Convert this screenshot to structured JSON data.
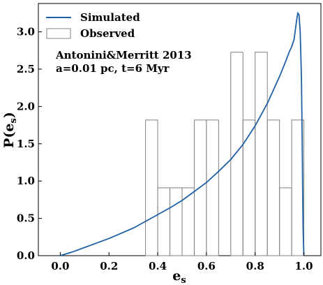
{
  "chart_data": {
    "type": "bar",
    "xlabel": "e",
    "xlabel_sub": "s",
    "ylabel_prefix": "P(e",
    "ylabel_sub": "s",
    "ylabel_suffix": ")",
    "xlim": [
      -0.09,
      1.07
    ],
    "ylim": [
      0.0,
      3.38
    ],
    "x_ticks": [
      {
        "value": 0.0,
        "label": "0.0"
      },
      {
        "value": 0.2,
        "label": "0.2"
      },
      {
        "value": 0.4,
        "label": "0.4"
      },
      {
        "value": 0.6,
        "label": "0.6"
      },
      {
        "value": 0.8,
        "label": "0.8"
      },
      {
        "value": 1.0,
        "label": "1.0"
      }
    ],
    "y_ticks": [
      {
        "value": 0.0,
        "label": "0.0"
      },
      {
        "value": 0.5,
        "label": "0.5"
      },
      {
        "value": 1.0,
        "label": "1.0"
      },
      {
        "value": 1.5,
        "label": "1.5"
      },
      {
        "value": 2.0,
        "label": "2.0"
      },
      {
        "value": 2.5,
        "label": "2.5"
      },
      {
        "value": 3.0,
        "label": "3.0"
      }
    ],
    "legend": {
      "placement": "upper-left",
      "entries": [
        {
          "label": "Simulated",
          "kind": "line",
          "color": "#1f5fa6"
        },
        {
          "label": "Observed",
          "kind": "bar",
          "color": "#808080"
        }
      ]
    },
    "annotation": {
      "lines": [
        "Antonini&Merritt 2013",
        "a=0.01 pc, t=6 Myr"
      ]
    },
    "series": [
      {
        "name": "Observed",
        "kind": "histogram",
        "bin_width": 0.05,
        "bins": [
          {
            "x0": 0.35,
            "value": 1.818
          },
          {
            "x0": 0.4,
            "value": 0.909
          },
          {
            "x0": 0.45,
            "value": 0.909
          },
          {
            "x0": 0.5,
            "value": 0.909
          },
          {
            "x0": 0.55,
            "value": 1.818
          },
          {
            "x0": 0.6,
            "value": 1.818
          },
          {
            "x0": 0.7,
            "value": 2.727
          },
          {
            "x0": 0.75,
            "value": 1.818
          },
          {
            "x0": 0.8,
            "value": 2.727
          },
          {
            "x0": 0.85,
            "value": 1.818
          },
          {
            "x0": 0.9,
            "value": 0.909
          },
          {
            "x0": 0.95,
            "value": 1.818
          }
        ]
      },
      {
        "name": "Simulated",
        "kind": "line",
        "x": [
          0.0,
          0.05,
          0.1,
          0.15,
          0.2,
          0.25,
          0.3,
          0.35,
          0.4,
          0.45,
          0.5,
          0.55,
          0.6,
          0.65,
          0.7,
          0.75,
          0.8,
          0.85,
          0.9,
          0.92,
          0.94,
          0.95,
          0.96,
          0.97,
          0.975,
          0.98,
          0.985,
          0.99,
          0.993,
          0.995,
          0.997,
          1.0
        ],
        "y": [
          0.0,
          0.05,
          0.11,
          0.17,
          0.23,
          0.3,
          0.37,
          0.46,
          0.55,
          0.64,
          0.74,
          0.86,
          0.98,
          1.13,
          1.29,
          1.49,
          1.74,
          2.04,
          2.4,
          2.56,
          2.73,
          2.8,
          2.9,
          3.15,
          3.25,
          3.23,
          3.0,
          2.4,
          1.6,
          0.9,
          0.35,
          0.0
        ]
      }
    ]
  }
}
